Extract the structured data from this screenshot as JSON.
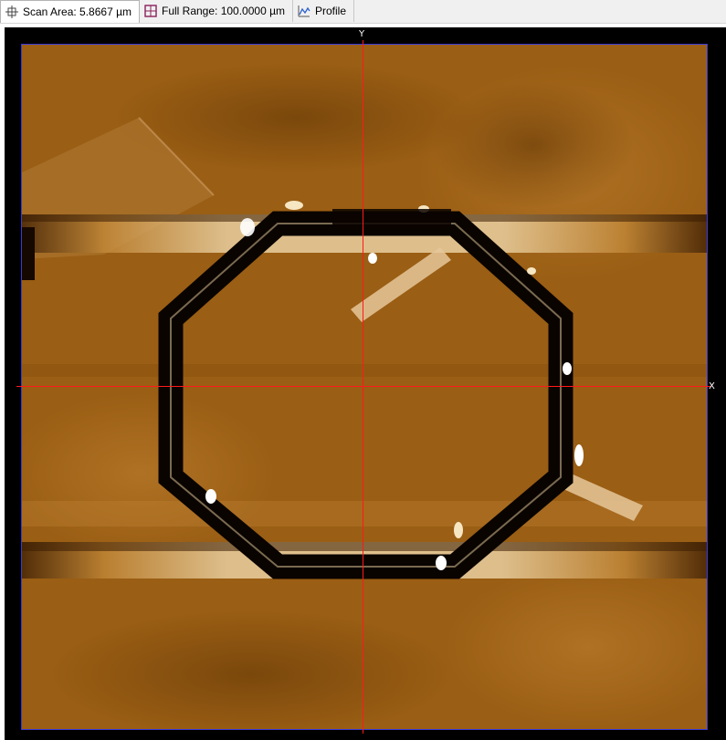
{
  "toolbar": {
    "scan_area_label": "Scan Area: 5.8667 µm",
    "full_range_label": "Full Range: 100.0000 µm",
    "profile_label": "Profile"
  },
  "viewer": {
    "y_axis_label": "Y",
    "x_axis_label": "X"
  },
  "colors": {
    "crosshair": "#ff1a1a",
    "scan_border": "#3a3ad8",
    "sample_base": "#9a5e14",
    "ring": "#0a0400",
    "highlight": "#f6e6c2"
  }
}
